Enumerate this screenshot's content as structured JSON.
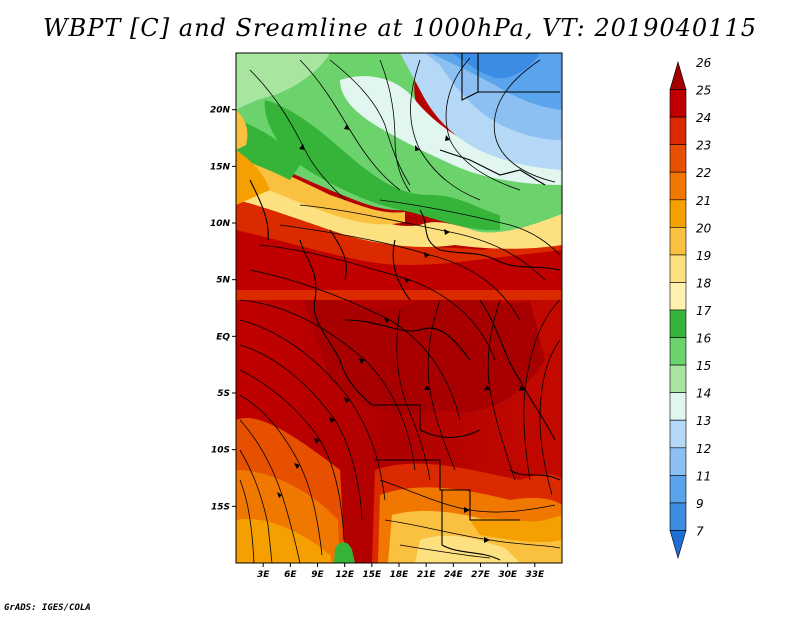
{
  "title": "WBPT [C] and Sreamline at 1000hPa, VT: 2019040115",
  "footer": "GrADS: IGES/COLA",
  "map": {
    "variable": "Wet-bulb potential temperature",
    "units": "C",
    "level": "1000hPa",
    "valid_time": "2019040115",
    "lon_range": [
      0,
      36
    ],
    "lat_range": [
      -20,
      25
    ],
    "lat_ticks": [
      {
        "value": 20,
        "label": "20N"
      },
      {
        "value": 15,
        "label": "15N"
      },
      {
        "value": 10,
        "label": "10N"
      },
      {
        "value": 5,
        "label": "5N"
      },
      {
        "value": 0,
        "label": "EQ"
      },
      {
        "value": -5,
        "label": "5S"
      },
      {
        "value": -10,
        "label": "10S"
      },
      {
        "value": -15,
        "label": "15S"
      }
    ],
    "lon_ticks": [
      {
        "value": 3,
        "label": "3E"
      },
      {
        "value": 6,
        "label": "6E"
      },
      {
        "value": 9,
        "label": "9E"
      },
      {
        "value": 12,
        "label": "12E"
      },
      {
        "value": 15,
        "label": "15E"
      },
      {
        "value": 18,
        "label": "18E"
      },
      {
        "value": 21,
        "label": "21E"
      },
      {
        "value": 24,
        "label": "24E"
      },
      {
        "value": 27,
        "label": "27E"
      },
      {
        "value": 30,
        "label": "30E"
      },
      {
        "value": 33,
        "label": "33E"
      }
    ]
  },
  "colorbar": {
    "levels": [
      "26",
      "25",
      "24",
      "23",
      "22",
      "21",
      "20",
      "19",
      "18",
      "17",
      "16",
      "15",
      "14",
      "13",
      "12",
      "11",
      "9",
      "7"
    ],
    "colors": [
      "#a00000",
      "#c00000",
      "#dc2a00",
      "#e65000",
      "#f07800",
      "#f5a000",
      "#fac040",
      "#fde080",
      "#fff2b0",
      "#36b43a",
      "#6cd26c",
      "#a8e6a0",
      "#e2f6f0",
      "#b4d8f6",
      "#8cc0f2",
      "#5aa4ec",
      "#3c8ce4",
      "#1e6ed8"
    ]
  }
}
